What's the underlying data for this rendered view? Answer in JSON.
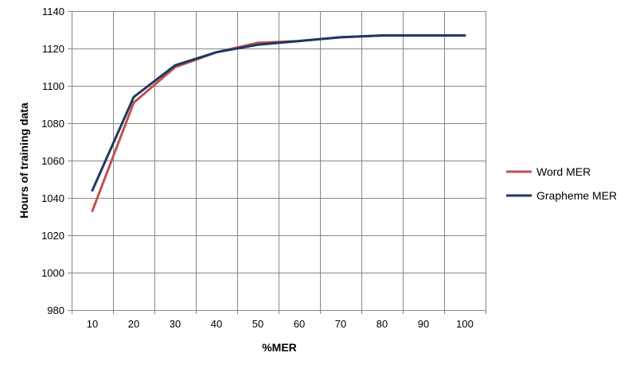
{
  "chart_data": {
    "type": "line",
    "xlabel": "%MER",
    "ylabel": "Hours of training data",
    "categories": [
      "10",
      "20",
      "30",
      "40",
      "50",
      "60",
      "70",
      "80",
      "90",
      "100"
    ],
    "ylim": [
      980,
      1140
    ],
    "yticks": [
      980,
      1000,
      1020,
      1040,
      1060,
      1080,
      1100,
      1120,
      1140
    ],
    "grid": true,
    "legend_position": "right",
    "series": [
      {
        "name": "Word MER",
        "color": "#C0504D",
        "values": [
          1033,
          1091,
          1110,
          1118,
          1123,
          1124,
          1126,
          1127,
          1127,
          1127
        ]
      },
      {
        "name": "Grapheme MER",
        "color": "#1F3864",
        "values": [
          1044,
          1094,
          1111,
          1118,
          1122,
          1124,
          1126,
          1127,
          1127,
          1127
        ]
      }
    ]
  }
}
